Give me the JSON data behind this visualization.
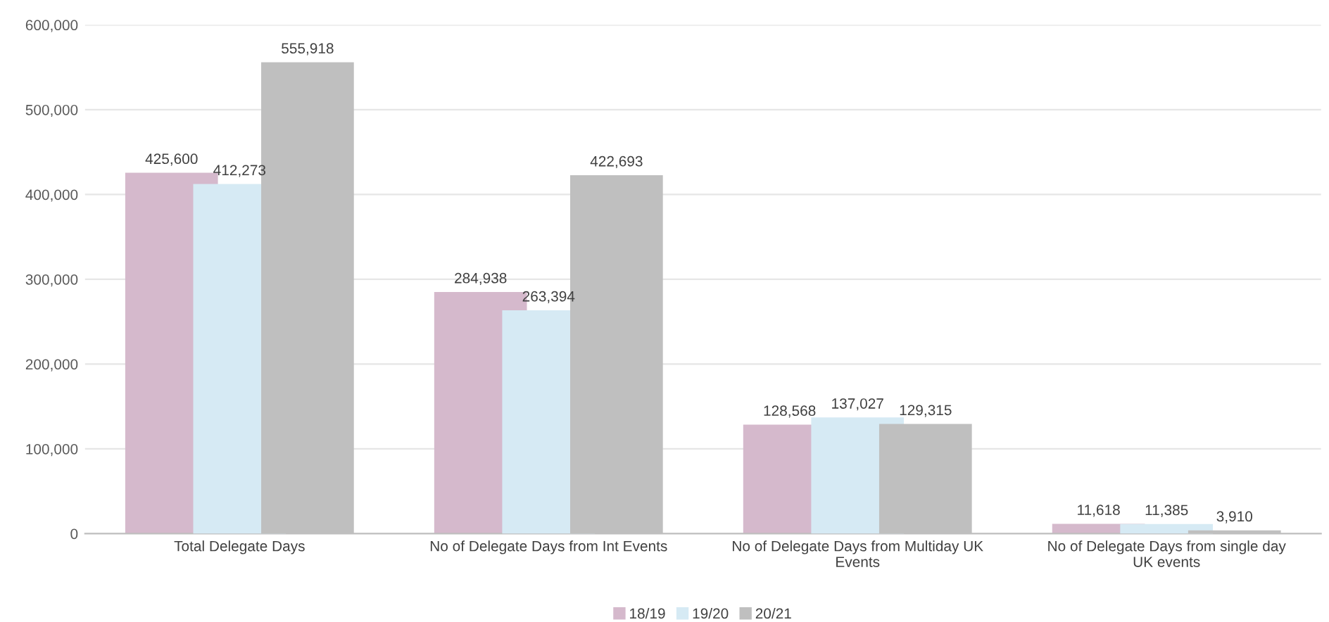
{
  "chart_data": {
    "type": "bar",
    "categories": [
      "Total Delegate Days",
      "No of Delegate Days from Int Events",
      "No of Delegate Days from Multiday UK Events",
      "No of Delegate Days from single day UK events"
    ],
    "series": [
      {
        "name": "18/19",
        "color": "#d5b9cc",
        "values": [
          425600,
          284938,
          128568,
          11618
        ]
      },
      {
        "name": "19/20",
        "color": "#d6eaf4",
        "values": [
          412273,
          263394,
          137027,
          11385
        ]
      },
      {
        "name": "20/21",
        "color": "#bfbfbf",
        "values": [
          555918,
          422693,
          129315,
          3910
        ]
      }
    ],
    "ylim": [
      0,
      600000
    ],
    "yticks": [
      {
        "value": 0,
        "label": "0"
      },
      {
        "value": 100000,
        "label": "100,000"
      },
      {
        "value": 200000,
        "label": "200,000"
      },
      {
        "value": 300000,
        "label": "300,000"
      },
      {
        "value": 400000,
        "label": "400,000"
      },
      {
        "value": 500000,
        "label": "500,000"
      },
      {
        "value": 600000,
        "label": "600,000"
      }
    ],
    "grid": "y",
    "legend": "bottom",
    "value_labels": [
      [
        "425,600",
        "284,938",
        "128,568",
        "11,618"
      ],
      [
        "412,273",
        "263,394",
        "137,027",
        "11,385"
      ],
      [
        "555,918",
        "422,693",
        "129,315",
        "3,910"
      ]
    ]
  }
}
